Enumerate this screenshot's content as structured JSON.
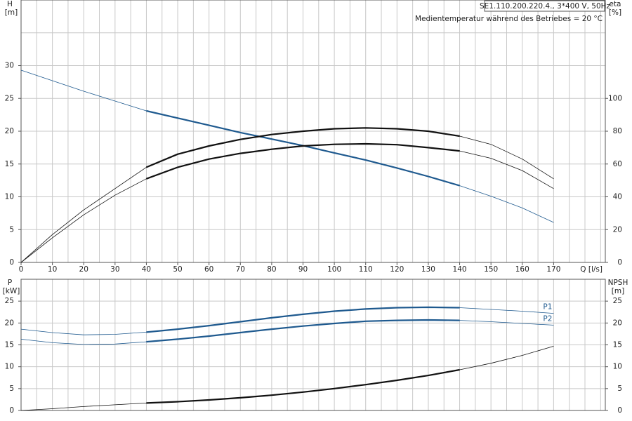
{
  "chart_data": [
    {
      "type": "line",
      "title": "SE1.110.200.220.4., 3*400 V, 50Hz",
      "subtitle": "Medientemperatur während des Betriebes = 20 °C",
      "xlabel": "Q [l/s]",
      "ylabel": "H",
      "yunit": "[m]",
      "y2label": "eta",
      "y2unit": "[%]",
      "x": [
        0,
        10,
        20,
        30,
        40,
        50,
        60,
        70,
        80,
        90,
        100,
        110,
        120,
        130,
        140,
        150,
        160,
        170
      ],
      "xlim": [
        0,
        186.5
      ],
      "xticks": [
        0,
        10,
        20,
        30,
        40,
        50,
        60,
        70,
        80,
        90,
        100,
        110,
        120,
        130,
        140,
        150,
        160,
        170
      ],
      "xgrid": [
        0,
        5,
        10,
        15,
        20,
        25,
        30,
        35,
        40,
        45,
        50,
        55,
        60,
        65,
        70,
        75,
        80,
        85,
        90,
        95,
        100,
        105,
        110,
        115,
        120,
        125,
        130,
        135,
        140,
        145,
        150,
        155,
        160,
        165,
        170,
        175,
        180,
        185
      ],
      "ylim": [
        0,
        40
      ],
      "yticks": [
        0,
        5,
        10,
        15,
        20,
        25,
        30
      ],
      "ygrid": [
        0,
        5,
        10,
        15,
        20,
        25,
        30,
        35,
        40
      ],
      "y2lim": [
        0,
        160
      ],
      "y2ticks": [
        0,
        20,
        40,
        60,
        80,
        100
      ],
      "highlight_x": [
        40,
        140
      ],
      "series": [
        {
          "color": "#1f5a8f",
          "values": [
            29.3,
            27.7,
            26.1,
            24.6,
            23.1,
            22.0,
            20.9,
            19.8,
            18.8,
            17.8,
            16.7,
            15.6,
            14.4,
            13.1,
            11.7,
            10.1,
            8.3,
            6.1
          ]
        },
        {
          "color": "#111111",
          "axis": "y2",
          "values": [
            0,
            17,
            32,
            45,
            58,
            66,
            71,
            75,
            78,
            80,
            81.5,
            82,
            81.5,
            80,
            77,
            72,
            63,
            51
          ]
        },
        {
          "color": "#111111",
          "axis": "y2",
          "values": [
            0,
            15,
            29,
            41,
            51,
            58,
            63,
            66.5,
            69,
            71,
            72,
            72.3,
            71.8,
            70,
            68,
            63.5,
            56,
            45
          ]
        }
      ]
    },
    {
      "type": "line",
      "ylabel": "P",
      "yunit": "[kW]",
      "y2label": "NPSH",
      "y2unit": "[m]",
      "x": [
        0,
        10,
        20,
        30,
        40,
        50,
        60,
        70,
        80,
        90,
        100,
        110,
        120,
        130,
        140,
        150,
        160,
        170
      ],
      "xlim": [
        0,
        186.5
      ],
      "xgrid": [
        0,
        5,
        10,
        15,
        20,
        25,
        30,
        35,
        40,
        45,
        50,
        55,
        60,
        65,
        70,
        75,
        80,
        85,
        90,
        95,
        100,
        105,
        110,
        115,
        120,
        125,
        130,
        135,
        140,
        145,
        150,
        155,
        160,
        165,
        170,
        175,
        180,
        185
      ],
      "ylim": [
        0,
        30
      ],
      "yticks": [
        0,
        5,
        10,
        15,
        20,
        25
      ],
      "ygrid": [
        0,
        5,
        10,
        15,
        20,
        25,
        30
      ],
      "y2lim": [
        0,
        30
      ],
      "y2ticks": [
        0,
        5,
        10,
        15,
        20,
        25
      ],
      "highlight_x": [
        40,
        140
      ],
      "series": [
        {
          "name": "P1",
          "color": "#1f5a8f",
          "values": [
            18.6,
            17.8,
            17.3,
            17.4,
            17.9,
            18.6,
            19.4,
            20.3,
            21.2,
            22.0,
            22.7,
            23.2,
            23.5,
            23.6,
            23.5,
            23.1,
            22.7,
            22.2
          ]
        },
        {
          "name": "P2",
          "color": "#1f5a8f",
          "values": [
            16.3,
            15.5,
            15.1,
            15.2,
            15.7,
            16.3,
            17.0,
            17.8,
            18.6,
            19.3,
            19.9,
            20.4,
            20.6,
            20.7,
            20.6,
            20.3,
            19.9,
            19.5
          ]
        },
        {
          "color": "#111111",
          "axis": "y2",
          "values": [
            0,
            0.4,
            0.9,
            1.3,
            1.7,
            2.0,
            2.4,
            2.9,
            3.5,
            4.2,
            5.0,
            5.9,
            6.9,
            8.0,
            9.3,
            10.8,
            12.6,
            14.7
          ]
        }
      ]
    }
  ]
}
